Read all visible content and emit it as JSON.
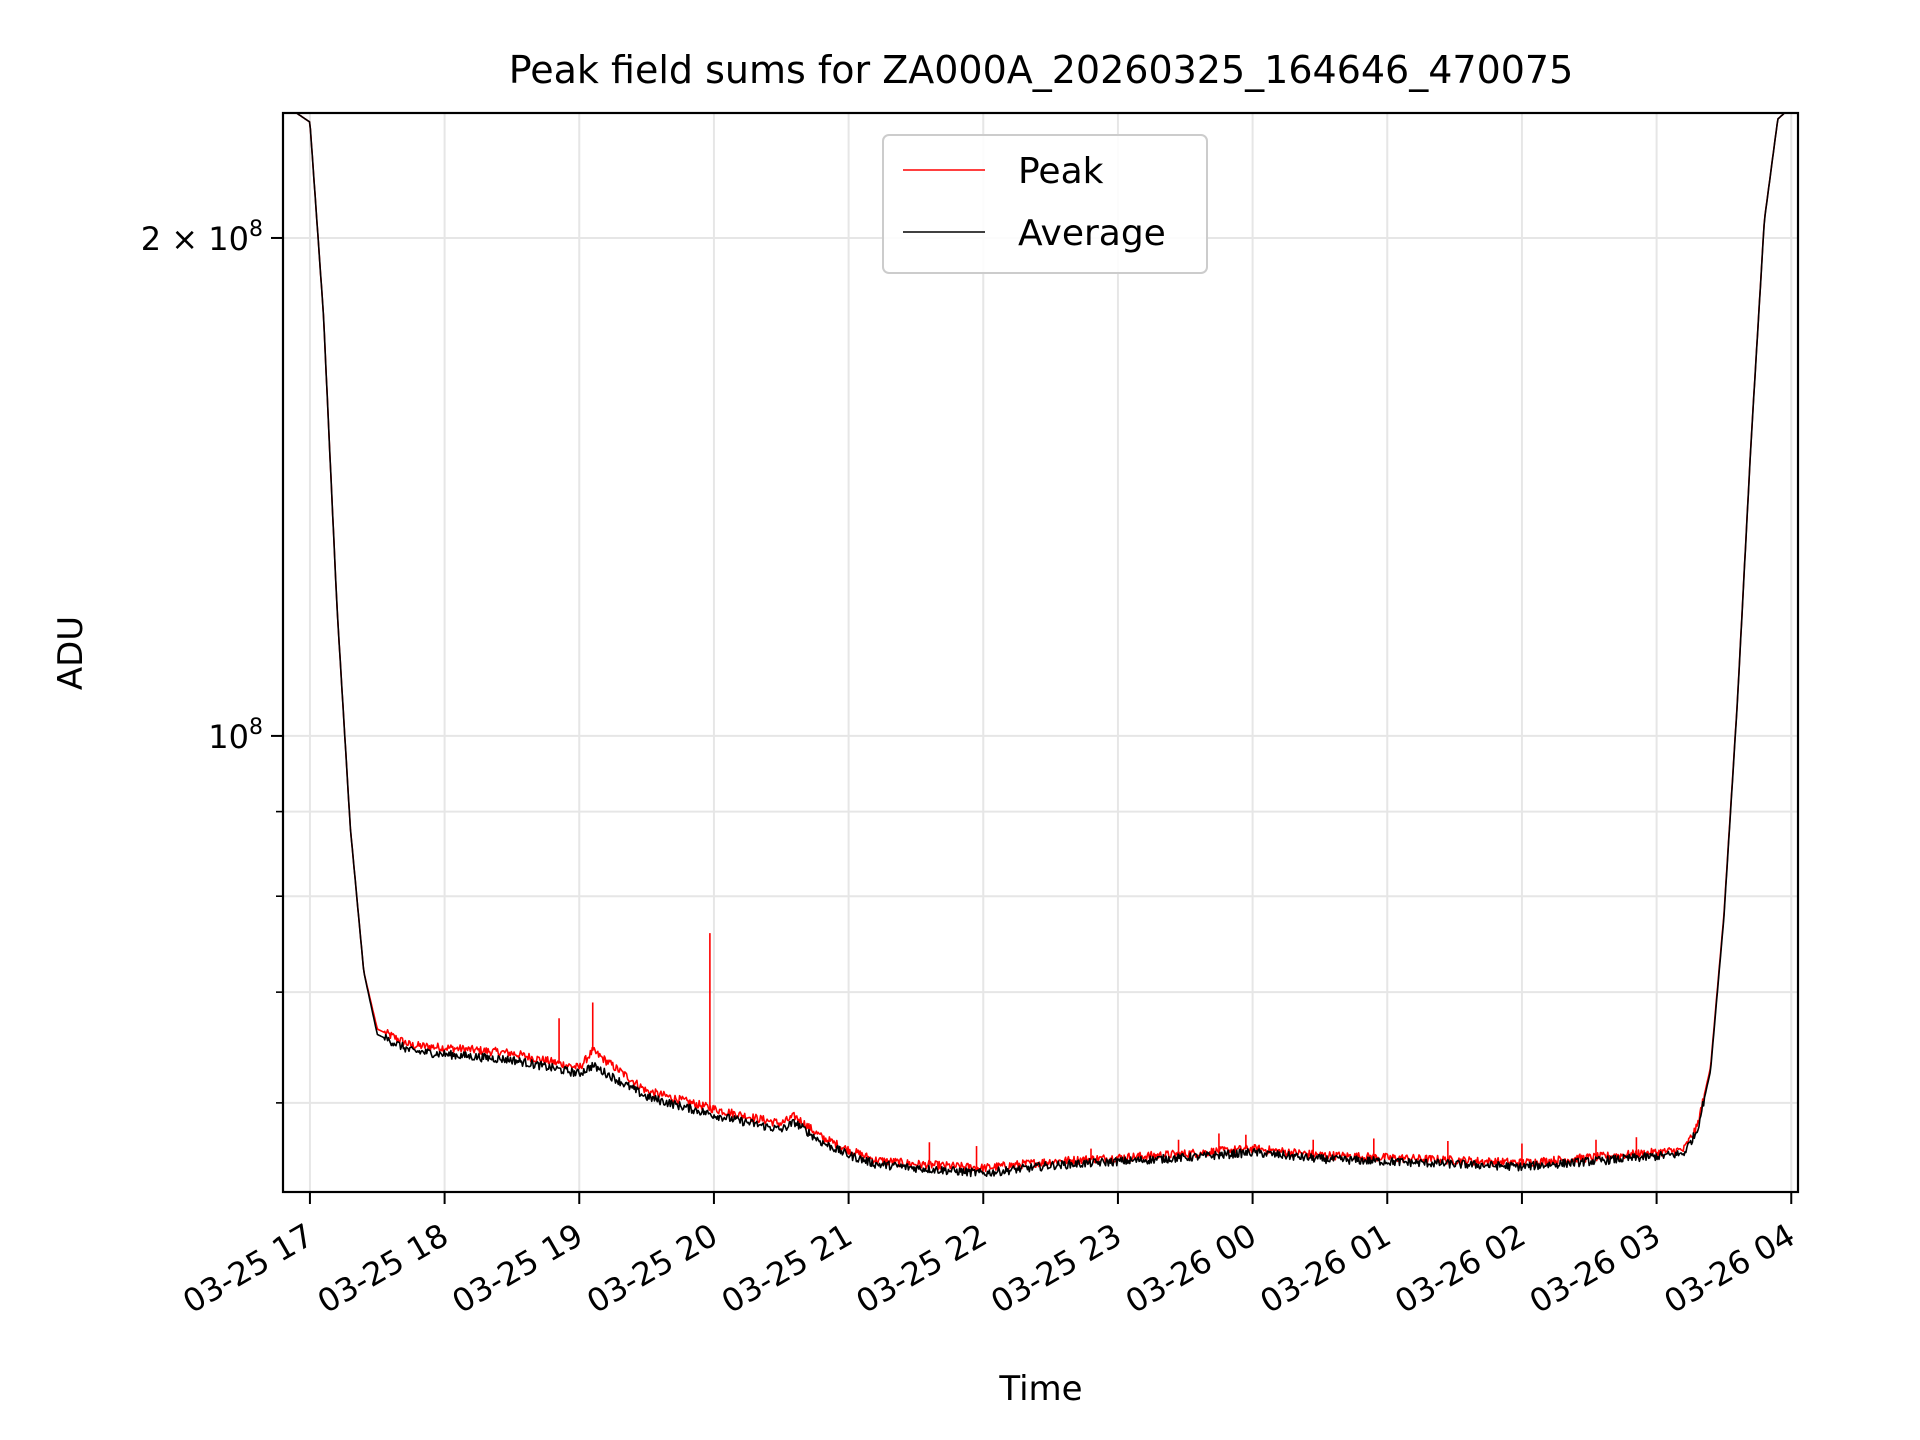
{
  "chart_data": {
    "type": "line",
    "title": "Peak field sums for ZA000A_20260325_164646_470075",
    "xlabel": "Time",
    "ylabel": "ADU",
    "yscale": "log",
    "ylim": [
      53000000,
      238000000
    ],
    "xlim": [
      -0.2,
      11.05
    ],
    "x_unit": "hours since 03-25 17:00",
    "x_ticks": [
      0,
      1,
      2,
      3,
      4,
      5,
      6,
      7,
      8,
      9,
      10,
      11
    ],
    "x_tick_labels": [
      "03-25 17",
      "03-25 18",
      "03-25 19",
      "03-25 20",
      "03-25 21",
      "03-25 22",
      "03-25 23",
      "03-26 00",
      "03-26 01",
      "03-26 02",
      "03-26 03",
      "03-26 04"
    ],
    "y_ticks_major": [
      {
        "value": 100000000,
        "base": "10",
        "exp": "8",
        "coef": ""
      },
      {
        "value": 200000000,
        "base": "10",
        "exp": "8",
        "coef": "2 × "
      }
    ],
    "y_ticks_minor": [
      60000000,
      70000000,
      80000000,
      90000000
    ],
    "grid": true,
    "legend": {
      "position": "top-center",
      "entries": [
        {
          "name": "Peak",
          "color": "#ff0000"
        },
        {
          "name": "Average",
          "color": "#000000"
        }
      ]
    },
    "series": [
      {
        "name": "Peak",
        "color": "#ff0000",
        "x": [
          -0.1,
          0.0,
          0.1,
          0.2,
          0.3,
          0.4,
          0.5,
          0.75,
          1.0,
          1.5,
          2.0,
          2.1,
          2.5,
          3.0,
          3.2,
          3.5,
          3.6,
          3.8,
          4.0,
          4.2,
          4.5,
          5.0,
          5.5,
          6.0,
          6.5,
          7.0,
          7.5,
          8.0,
          8.5,
          9.0,
          9.5,
          10.0,
          10.2,
          10.3,
          10.4,
          10.5,
          10.6,
          10.7,
          10.8,
          10.9,
          10.95
        ],
        "values": [
          238000000,
          235000000,
          180000000,
          120000000,
          88000000,
          72000000,
          66500000,
          65000000,
          64800000,
          64300000,
          63000000,
          64500000,
          61000000,
          59500000,
          59000000,
          58300000,
          58900000,
          57200000,
          56200000,
          55400000,
          55100000,
          54800000,
          55300000,
          55600000,
          55900000,
          56300000,
          55800000,
          55600000,
          55400000,
          55200000,
          55600000,
          56000000,
          56200000,
          58000000,
          63000000,
          78000000,
          105000000,
          150000000,
          205000000,
          236000000,
          238000000
        ],
        "spikes": [
          {
            "x": 1.85,
            "value": 67500000
          },
          {
            "x": 2.1,
            "value": 69000000
          },
          {
            "x": 2.97,
            "value": 76000000
          },
          {
            "x": 4.6,
            "value": 56800000
          },
          {
            "x": 4.95,
            "value": 56500000
          },
          {
            "x": 5.8,
            "value": 56300000
          },
          {
            "x": 6.45,
            "value": 57000000
          },
          {
            "x": 6.75,
            "value": 57500000
          },
          {
            "x": 6.95,
            "value": 57400000
          },
          {
            "x": 7.45,
            "value": 57000000
          },
          {
            "x": 7.9,
            "value": 57100000
          },
          {
            "x": 8.45,
            "value": 56900000
          },
          {
            "x": 9.0,
            "value": 56700000
          },
          {
            "x": 9.55,
            "value": 57000000
          },
          {
            "x": 9.85,
            "value": 57200000
          }
        ]
      },
      {
        "name": "Average",
        "color": "#000000",
        "x": [
          -0.1,
          0.0,
          0.1,
          0.2,
          0.3,
          0.4,
          0.5,
          0.75,
          1.0,
          1.5,
          2.0,
          2.1,
          2.5,
          3.0,
          3.2,
          3.5,
          3.6,
          3.8,
          4.0,
          4.2,
          4.5,
          5.0,
          5.5,
          6.0,
          6.5,
          7.0,
          7.5,
          8.0,
          8.5,
          9.0,
          9.5,
          10.0,
          10.2,
          10.3,
          10.4,
          10.5,
          10.6,
          10.7,
          10.8,
          10.9,
          10.95
        ],
        "values": [
          238000000,
          235000000,
          180000000,
          120000000,
          88000000,
          72000000,
          66000000,
          64500000,
          64200000,
          63700000,
          62500000,
          63200000,
          60500000,
          59000000,
          58500000,
          57800000,
          58400000,
          56800000,
          55800000,
          55100000,
          54800000,
          54400000,
          55000000,
          55300000,
          55600000,
          56000000,
          55500000,
          55300000,
          55100000,
          54900000,
          55300000,
          55700000,
          55900000,
          57700000,
          62700000,
          77700000,
          104800000,
          149800000,
          204800000,
          236000000,
          238000000
        ]
      }
    ]
  }
}
